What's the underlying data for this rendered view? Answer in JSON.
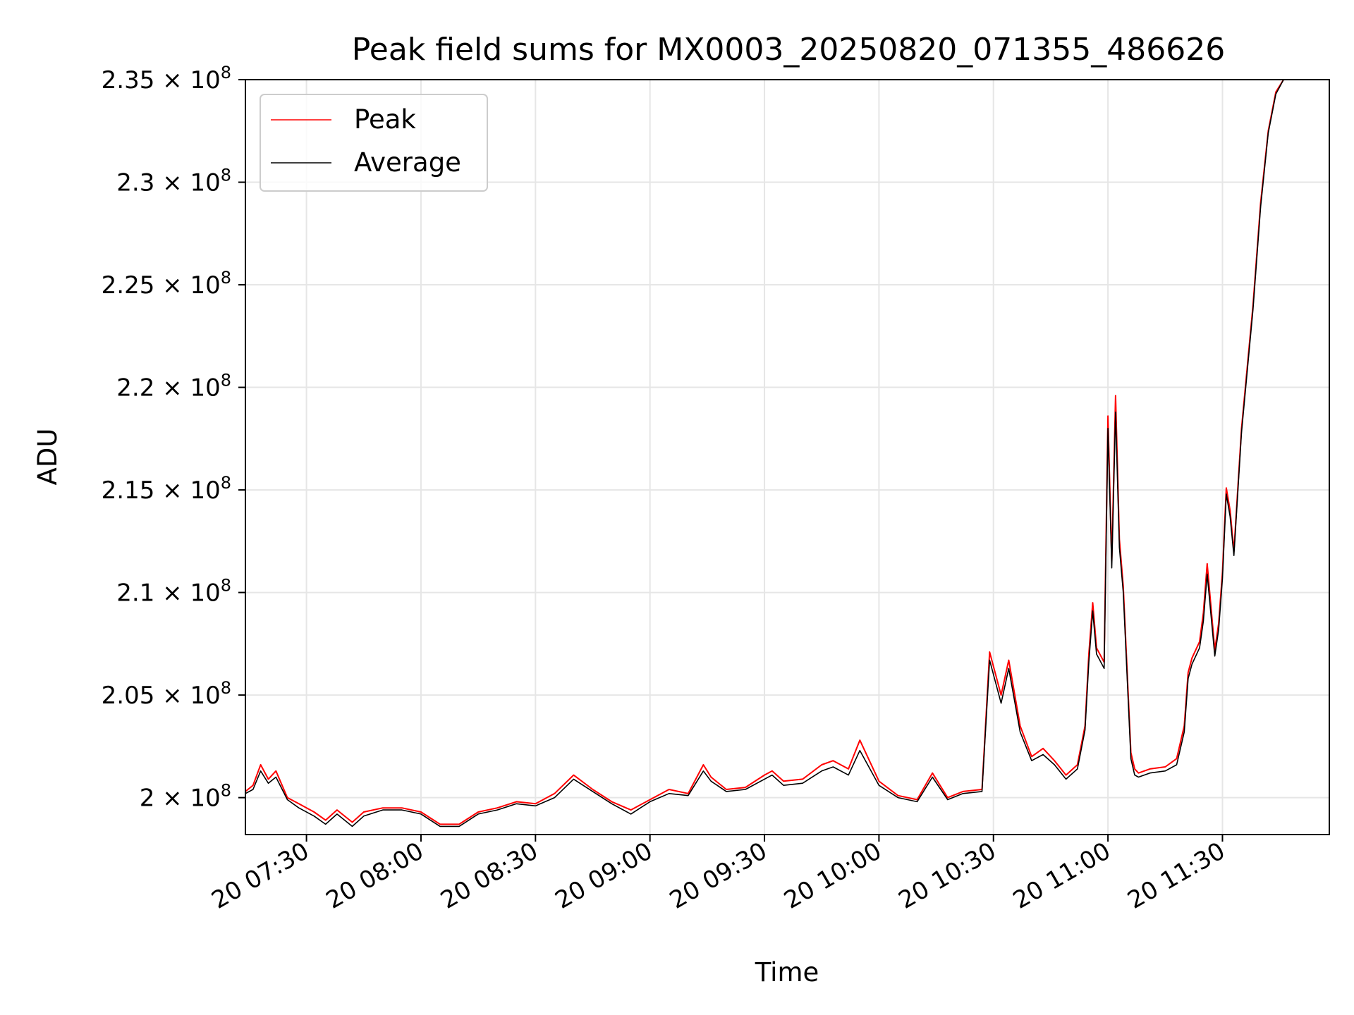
{
  "chart_data": {
    "type": "line",
    "title": "Peak field sums for MX0003_20250820_071355_486626",
    "xlabel": "Time",
    "ylabel": "ADU",
    "xlim": [
      "2025-08-20 07:14",
      "2025-08-20 11:58"
    ],
    "ylim": [
      198.2,
      235.0
    ],
    "y_unit_multiplier": "× 10^6",
    "grid": true,
    "legend_position": "top-left",
    "x_ticks": [
      "2025-08-20 07:30",
      "2025-08-20 08:00",
      "2025-08-20 08:30",
      "2025-08-20 09:00",
      "2025-08-20 09:30",
      "2025-08-20 10:00",
      "2025-08-20 10:30",
      "2025-08-20 11:00",
      "2025-08-20 11:30"
    ],
    "x_tick_labels": [
      "20 07:30",
      "20 08:00",
      "20 08:30",
      "20 09:00",
      "20 09:30",
      "20 10:00",
      "20 10:30",
      "20 11:00",
      "20 11:30"
    ],
    "y_ticks": [
      200,
      205,
      210,
      215,
      220,
      225,
      230,
      235
    ],
    "y_tick_labels": [
      "2",
      "2.05",
      "2.1",
      "2.15",
      "2.2",
      "2.25",
      "2.3",
      "2.35"
    ],
    "y_tick_power": "8",
    "y_tick_times": "×",
    "y_tick_base": "10",
    "x": [
      "2025-08-20 07:14",
      "2025-08-20 07:16",
      "2025-08-20 07:18",
      "2025-08-20 07:20",
      "2025-08-20 07:22",
      "2025-08-20 07:25",
      "2025-08-20 07:28",
      "2025-08-20 07:32",
      "2025-08-20 07:35",
      "2025-08-20 07:38",
      "2025-08-20 07:42",
      "2025-08-20 07:45",
      "2025-08-20 07:50",
      "2025-08-20 07:55",
      "2025-08-20 08:00",
      "2025-08-20 08:05",
      "2025-08-20 08:10",
      "2025-08-20 08:15",
      "2025-08-20 08:20",
      "2025-08-20 08:25",
      "2025-08-20 08:30",
      "2025-08-20 08:35",
      "2025-08-20 08:40",
      "2025-08-20 08:45",
      "2025-08-20 08:50",
      "2025-08-20 08:55",
      "2025-08-20 09:00",
      "2025-08-20 09:05",
      "2025-08-20 09:10",
      "2025-08-20 09:14",
      "2025-08-20 09:16",
      "2025-08-20 09:20",
      "2025-08-20 09:25",
      "2025-08-20 09:30",
      "2025-08-20 09:32",
      "2025-08-20 09:35",
      "2025-08-20 09:40",
      "2025-08-20 09:45",
      "2025-08-20 09:48",
      "2025-08-20 09:52",
      "2025-08-20 09:55",
      "2025-08-20 10:00",
      "2025-08-20 10:05",
      "2025-08-20 10:10",
      "2025-08-20 10:14",
      "2025-08-20 10:18",
      "2025-08-20 10:22",
      "2025-08-20 10:27",
      "2025-08-20 10:29",
      "2025-08-20 10:32",
      "2025-08-20 10:34",
      "2025-08-20 10:37",
      "2025-08-20 10:40",
      "2025-08-20 10:43",
      "2025-08-20 10:46",
      "2025-08-20 10:49",
      "2025-08-20 10:52",
      "2025-08-20 10:54",
      "2025-08-20 10:55",
      "2025-08-20 10:56",
      "2025-08-20 10:57",
      "2025-08-20 10:59",
      "2025-08-20 11:00",
      "2025-08-20 11:01",
      "2025-08-20 11:02",
      "2025-08-20 11:03",
      "2025-08-20 11:04",
      "2025-08-20 11:06",
      "2025-08-20 11:07",
      "2025-08-20 11:08",
      "2025-08-20 11:11",
      "2025-08-20 11:15",
      "2025-08-20 11:18",
      "2025-08-20 11:20",
      "2025-08-20 11:21",
      "2025-08-20 11:22",
      "2025-08-20 11:24",
      "2025-08-20 11:25",
      "2025-08-20 11:26",
      "2025-08-20 11:28",
      "2025-08-20 11:29",
      "2025-08-20 11:30",
      "2025-08-20 11:31",
      "2025-08-20 11:32",
      "2025-08-20 11:33",
      "2025-08-20 11:35",
      "2025-08-20 11:38",
      "2025-08-20 11:40",
      "2025-08-20 11:42",
      "2025-08-20 11:44",
      "2025-08-20 11:46",
      "2025-08-20 11:48"
    ],
    "series": [
      {
        "name": "Peak",
        "color": "#ff0000",
        "values": [
          200.3,
          200.6,
          201.6,
          200.9,
          201.3,
          200.0,
          199.7,
          199.3,
          198.9,
          199.4,
          198.8,
          199.3,
          199.5,
          199.5,
          199.3,
          198.7,
          198.7,
          199.3,
          199.5,
          199.8,
          199.7,
          200.2,
          201.1,
          200.4,
          199.8,
          199.4,
          199.9,
          200.4,
          200.2,
          201.6,
          201.0,
          200.4,
          200.5,
          201.1,
          201.3,
          200.8,
          200.9,
          201.6,
          201.8,
          201.4,
          202.8,
          200.8,
          200.1,
          199.9,
          201.2,
          200.0,
          200.3,
          200.4,
          207.1,
          205.0,
          206.7,
          203.5,
          202.0,
          202.4,
          201.8,
          201.1,
          201.6,
          203.5,
          207.0,
          209.5,
          207.3,
          206.6,
          218.6,
          211.5,
          219.6,
          212.6,
          210.3,
          202.2,
          201.4,
          201.2,
          201.4,
          201.5,
          201.9,
          203.5,
          206.1,
          206.8,
          207.6,
          209.0,
          211.4,
          207.2,
          208.5,
          211.0,
          215.1,
          214.0,
          212.0,
          218.0,
          224.0,
          229.0,
          232.5,
          234.4,
          235.0,
          235.0
        ]
      },
      {
        "name": "Average",
        "color": "#000000",
        "values": [
          200.2,
          200.4,
          201.3,
          200.7,
          201.0,
          199.9,
          199.5,
          199.1,
          198.7,
          199.2,
          198.6,
          199.1,
          199.4,
          199.4,
          199.2,
          198.6,
          198.6,
          199.2,
          199.4,
          199.7,
          199.6,
          200.0,
          200.9,
          200.3,
          199.7,
          199.2,
          199.8,
          200.2,
          200.1,
          201.3,
          200.8,
          200.3,
          200.4,
          200.9,
          201.1,
          200.6,
          200.7,
          201.3,
          201.5,
          201.1,
          202.3,
          200.6,
          200.0,
          199.8,
          201.0,
          199.9,
          200.2,
          200.3,
          206.7,
          204.6,
          206.3,
          203.2,
          201.8,
          202.1,
          201.6,
          200.9,
          201.4,
          203.3,
          206.6,
          209.1,
          207.0,
          206.3,
          218.0,
          211.2,
          218.8,
          212.2,
          210.0,
          201.9,
          201.1,
          201.0,
          201.2,
          201.3,
          201.6,
          203.2,
          205.8,
          206.5,
          207.3,
          208.6,
          210.9,
          206.9,
          208.2,
          210.7,
          214.8,
          213.7,
          211.8,
          217.8,
          223.8,
          228.8,
          232.4,
          234.3,
          235.0,
          235.0
        ]
      }
    ]
  }
}
